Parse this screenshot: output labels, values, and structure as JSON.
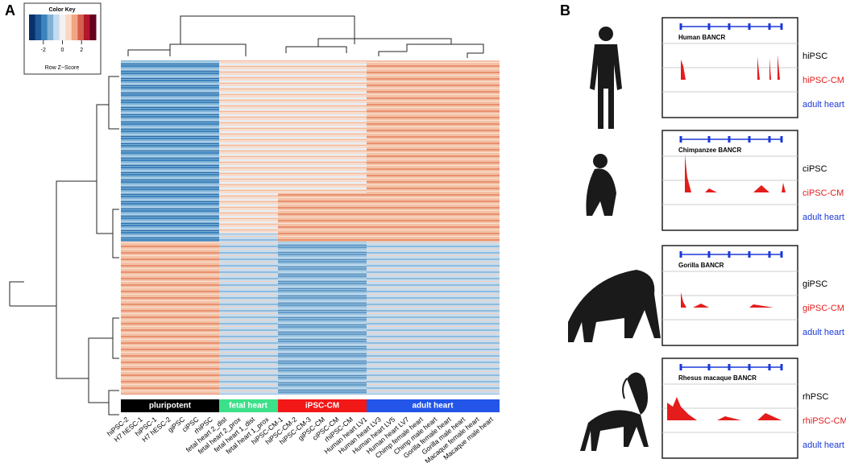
{
  "panels": {
    "a": "A",
    "b": "B"
  },
  "color_key": {
    "title": "Color Key",
    "label": "Row Z−Score",
    "xlim": [
      -3.5,
      3.5
    ],
    "xticks": [
      -2,
      0,
      2
    ]
  },
  "groups": [
    "pluripotent",
    "fetal heart",
    "iPSC-CM",
    "adult heart"
  ],
  "samples": [
    "hiPSC-2",
    "H7 hESC-1",
    "hiPSC-1",
    "H7 hESC-2",
    "giPSC",
    "ciPSC",
    "rhiPSC",
    "fetal heart 2_dist",
    "fetal heart 2_prox",
    "fetal heart 1_dist",
    "fetal heart 1_prox",
    "hiPSC-CM-1",
    "hiPSC-CM-2",
    "hiPSC-CM-3",
    "giPSC-CM",
    "ciPSC-CM",
    "rhiPSC-CM",
    "Human heart LV1",
    "Human heart LV3",
    "Human heart LV5",
    "Human heart LV7",
    "Chimp female heart",
    "Chimp male heart",
    "Gorilla female heart",
    "Gorilla male heart",
    "Macaque female heart",
    "Macaque male heart"
  ],
  "tracks": [
    {
      "title": "Human BANCR",
      "rows": [
        "hiPSC",
        "hiPSC-CM",
        "adult heart"
      ]
    },
    {
      "title": "Chimpanzee BANCR",
      "rows": [
        "ciPSC",
        "ciPSC-CM",
        "adult heart"
      ]
    },
    {
      "title": "Gorilla BANCR",
      "rows": [
        "giPSC",
        "giPSC-CM",
        "adult heart"
      ]
    },
    {
      "title": "Rhesus macaque BANCR",
      "rows": [
        "rhPSC",
        "rhiPSC-CM",
        "adult heart"
      ]
    }
  ]
}
